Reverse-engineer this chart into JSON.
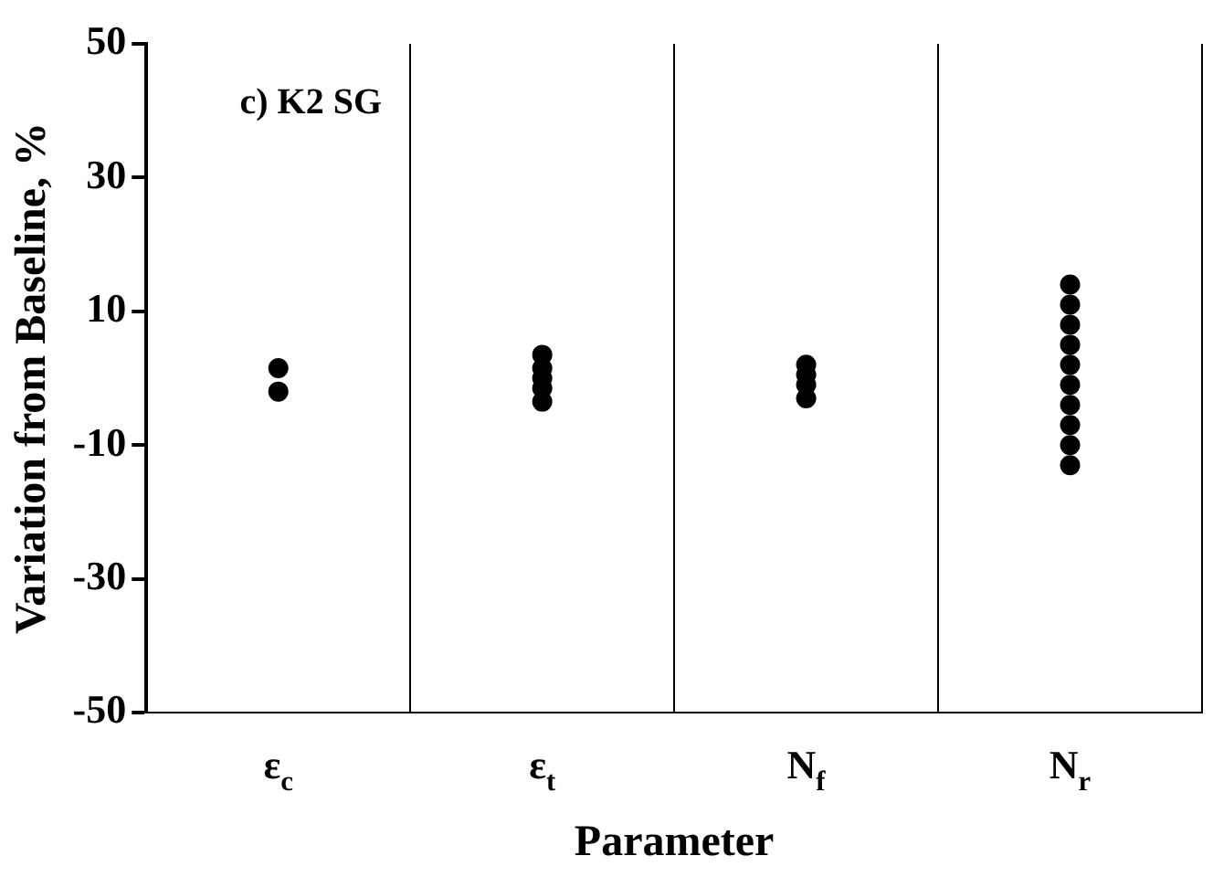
{
  "chart_data": {
    "type": "scatter",
    "title": "c) K2 SG",
    "xlabel": "Parameter",
    "ylabel": "Variation from Baseline, %",
    "categories": [
      "ε$_{c}$",
      "ε$_{t}$",
      "N$_{f}$",
      "N$_{r}$"
    ],
    "ylim": [
      -50,
      50
    ],
    "yticks": [
      -50,
      -30,
      -10,
      10,
      30,
      50
    ],
    "grid": "x",
    "marker": "circle",
    "legend": false,
    "series": [
      {
        "color": "#000000",
        "x": [
          "ε$_{c}$",
          "ε$_{c}$"
        ],
        "values": [
          -2,
          1.5
        ]
      },
      {
        "color": "#000000",
        "x": [
          "ε$_{t}$",
          "ε$_{t}$",
          "ε$_{t}$",
          "ε$_{t}$",
          "ε$_{t}$"
        ],
        "values": [
          -3.5,
          -1.5,
          0,
          1.5,
          3.5
        ]
      },
      {
        "color": "#000000",
        "x": [
          "N$_{f}$",
          "N$_{f}$",
          "N$_{f}$",
          "N$_{f}$"
        ],
        "values": [
          -3,
          -1,
          0.5,
          2
        ]
      },
      {
        "color": "#000000",
        "x": [
          "N$_{r}$",
          "N$_{r}$",
          "N$_{r}$",
          "N$_{r}$",
          "N$_{r}$",
          "N$_{r}$",
          "N$_{r}$",
          "N$_{r}$",
          "N$_{r}$",
          "N$_{r}$"
        ],
        "values": [
          -13,
          -10,
          -7,
          -4,
          -1,
          2,
          5,
          8,
          11,
          14
        ]
      }
    ]
  }
}
